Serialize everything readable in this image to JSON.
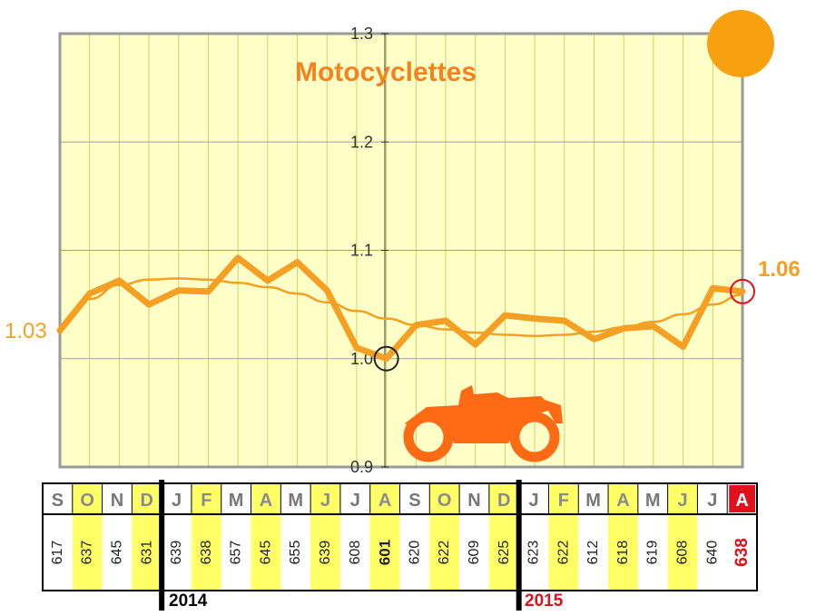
{
  "chart_data": {
    "type": "line",
    "title": "Motocyclettes",
    "ylim": [
      0.9,
      1.3
    ],
    "yticks": [
      "0.9",
      "1.0",
      "1.1",
      "1.2",
      "1.3"
    ],
    "grid": true,
    "months": [
      "S",
      "O",
      "N",
      "D",
      "J",
      "F",
      "M",
      "A",
      "M",
      "J",
      "J",
      "A",
      "S",
      "O",
      "N",
      "D",
      "J",
      "F",
      "M",
      "A",
      "M",
      "J",
      "J",
      "A"
    ],
    "counts": [
      "617",
      "637",
      "645",
      "631",
      "639",
      "638",
      "657",
      "645",
      "655",
      "639",
      "608",
      "601",
      "620",
      "622",
      "609",
      "625",
      "623",
      "622",
      "612",
      "618",
      "619",
      "608",
      "640",
      "638"
    ],
    "series": [
      {
        "values": [
          1.026,
          1.06,
          1.072,
          1.05,
          1.063,
          1.062,
          1.093,
          1.072,
          1.089,
          1.063,
          1.01,
          1.0,
          1.031,
          1.035,
          1.013,
          1.04,
          1.037,
          1.035,
          1.018,
          1.028,
          1.03,
          1.011,
          1.065,
          1.062
        ]
      },
      {
        "values": [
          1.03,
          1.055,
          1.068,
          1.073,
          1.074,
          1.073,
          1.07,
          1.066,
          1.06,
          1.052,
          1.044,
          1.037,
          1.031,
          1.027,
          1.024,
          1.022,
          1.021,
          1.022,
          1.025,
          1.029,
          1.034,
          1.041,
          1.05,
          1.059
        ]
      }
    ],
    "start_label": "1.03",
    "end_label": "1.06",
    "min_index": 11,
    "years": [
      "2014",
      "2015"
    ]
  },
  "colors": {
    "plot_bg": "#ffffc8",
    "grid": "#c8d66a",
    "hgrid": "#a0a0a0",
    "line": "#f5a024",
    "title": "#f5821f",
    "highlight": "#ffff66",
    "red": "#e0101c",
    "sun": "#f8a00f",
    "moto": "#ff6a14"
  },
  "icons": {
    "decoration": "sun-icon",
    "picture": "motorcycle-icon"
  }
}
